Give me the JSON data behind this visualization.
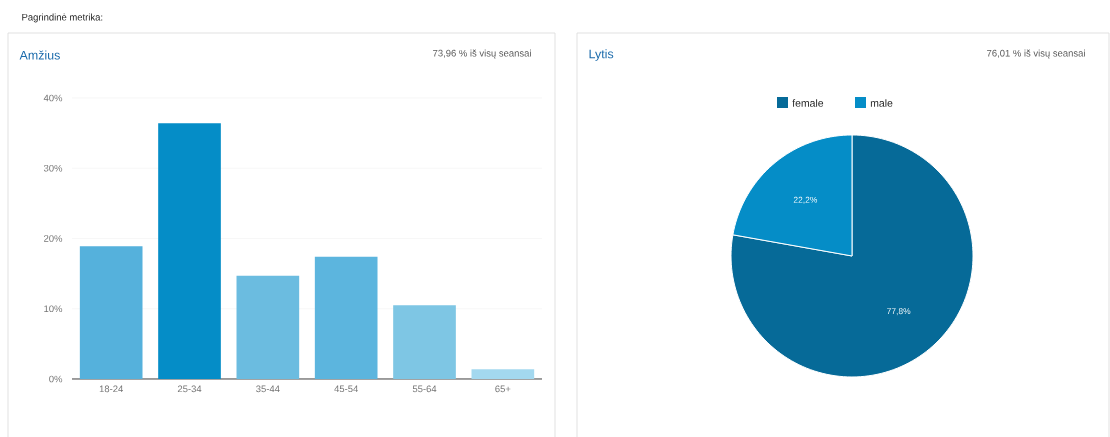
{
  "chart_data": [
    {
      "type": "bar",
      "title": "Amžius",
      "subtitle": "73,96 % iš visų seansai",
      "annotations": [
        "Pagrindinė metrika:"
      ],
      "categories": [
        "18-24",
        "25-34",
        "35-44",
        "45-54",
        "55-64",
        "65+"
      ],
      "values": [
        18.9,
        36.4,
        14.7,
        17.4,
        10.5,
        1.4
      ],
      "colors": [
        "#55b1dc",
        "#058dc7",
        "#6bbce0",
        "#5cb5de",
        "#7ec6e4",
        "#a3d8ef"
      ],
      "ylim": [
        0,
        40
      ],
      "yticks": [
        {
          "value": 0,
          "label": "0%"
        },
        {
          "value": 10,
          "label": "10%"
        },
        {
          "value": 20,
          "label": "20%"
        },
        {
          "value": 30,
          "label": "30%"
        },
        {
          "value": 40,
          "label": "40%"
        }
      ],
      "grid": "y"
    },
    {
      "type": "pie",
      "title": "Lytis",
      "subtitle": "76,01 % iš visų seansai",
      "categories": [
        "female",
        "male"
      ],
      "values": [
        77.8,
        22.2
      ],
      "colors": [
        "#066a98",
        "#058dc7"
      ],
      "value_labels": [
        "77,8%",
        "22,2%"
      ],
      "legend": "top"
    }
  ]
}
